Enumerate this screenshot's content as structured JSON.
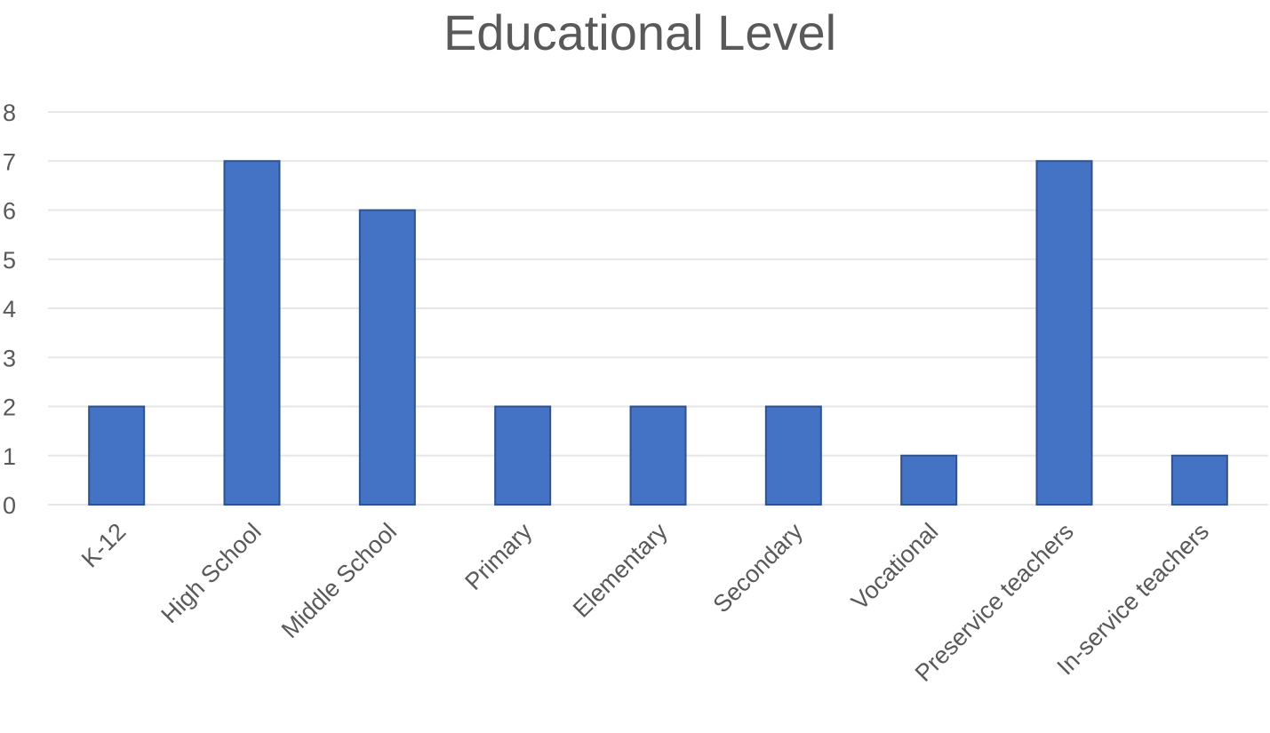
{
  "chart_data": {
    "type": "bar",
    "title": "Educational Level",
    "categories": [
      "K-12",
      "High School",
      "Middle School",
      "Primary",
      "Elementary",
      "Secondary",
      "Vocational",
      "Preservice teachers",
      "In-service teachers"
    ],
    "values": [
      2,
      7,
      6,
      2,
      2,
      2,
      1,
      7,
      1
    ],
    "ylim": [
      0,
      8
    ],
    "yticks": [
      0,
      1,
      2,
      3,
      4,
      5,
      6,
      7,
      8
    ],
    "xlabel": "",
    "ylabel": "",
    "grid": true,
    "legend": "none",
    "bar_color": "#4472c4",
    "bar_edge_color": "#2f528f"
  }
}
